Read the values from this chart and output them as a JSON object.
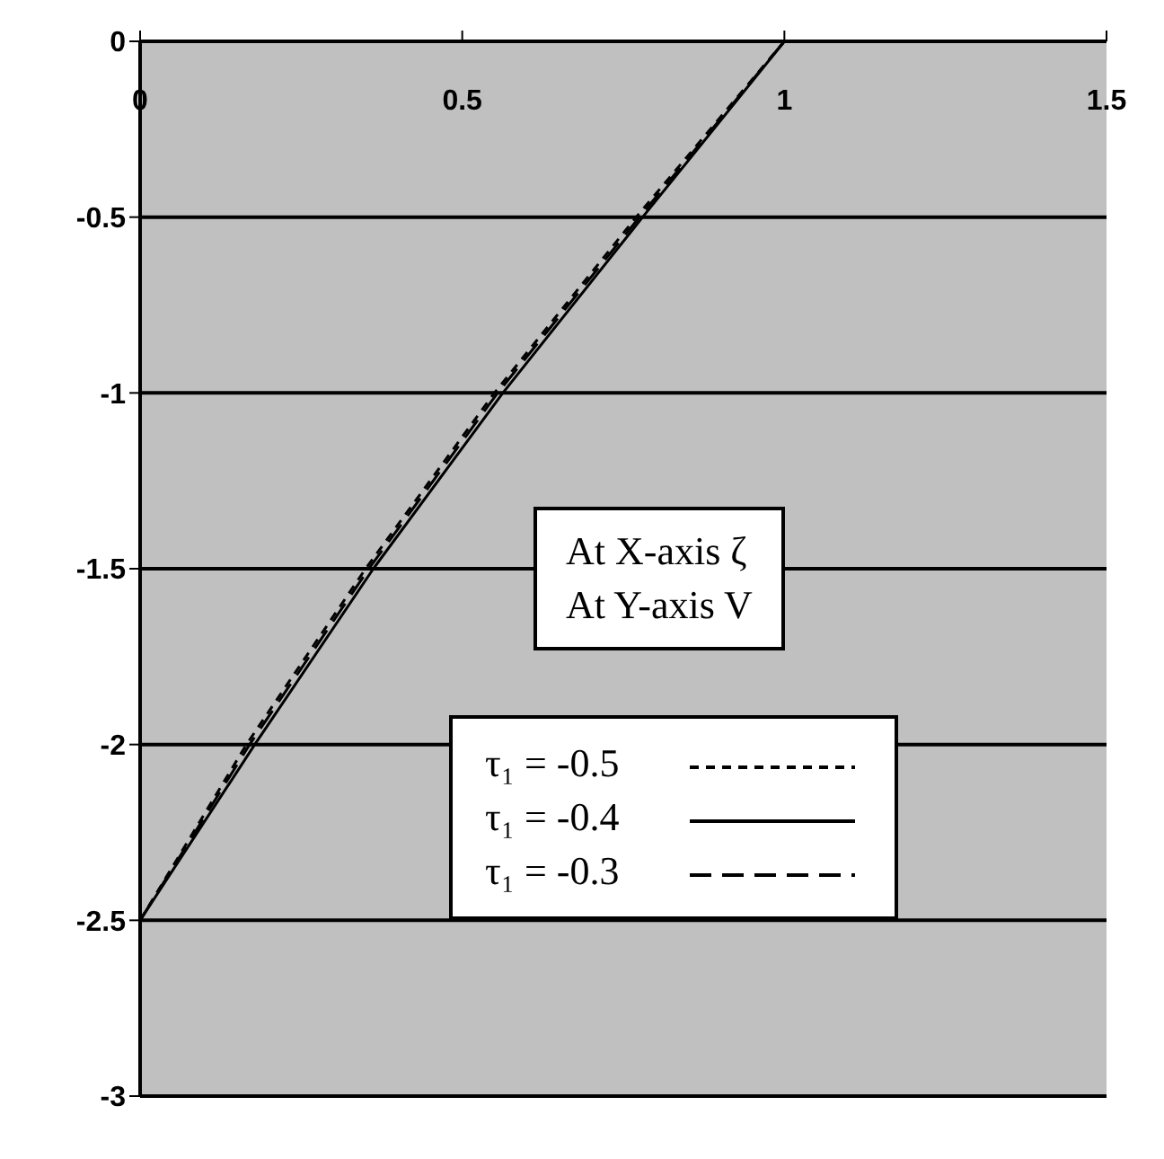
{
  "chart_data": {
    "type": "line",
    "series": [
      {
        "name": "τ₁ = -0.5",
        "color": "#000000",
        "line_style": "dotted",
        "x": [
          0,
          0.165,
          0.35,
          0.55,
          0.77,
          1
        ],
        "values": [
          -2.5,
          -2,
          -1.5,
          -1,
          -0.5,
          0
        ]
      },
      {
        "name": "τ₁ = -0.4",
        "color": "#000000",
        "line_style": "solid",
        "x": [
          0,
          0.178,
          0.362,
          0.563,
          0.78,
          1
        ],
        "values": [
          -2.5,
          -2,
          -1.5,
          -1,
          -0.5,
          0
        ]
      },
      {
        "name": "τ₁ = -0.3",
        "color": "#000000",
        "line_style": "dashed",
        "x": [
          0,
          0.17,
          0.355,
          0.555,
          0.775,
          1
        ],
        "values": [
          -2.5,
          -2,
          -1.5,
          -1,
          -0.5,
          0
        ]
      }
    ],
    "xlim": [
      0,
      1.5
    ],
    "xticks": [
      0,
      0.5,
      1,
      1.5
    ],
    "ylim": [
      -3,
      0
    ],
    "yticks": [
      0,
      -0.5,
      -1,
      -1.5,
      -2,
      -2.5,
      -3
    ],
    "grid": "y",
    "legend": "bottom right",
    "marker": "none",
    "annotations": [
      "At X-axis ζ",
      "At Y-axis V"
    ]
  }
}
